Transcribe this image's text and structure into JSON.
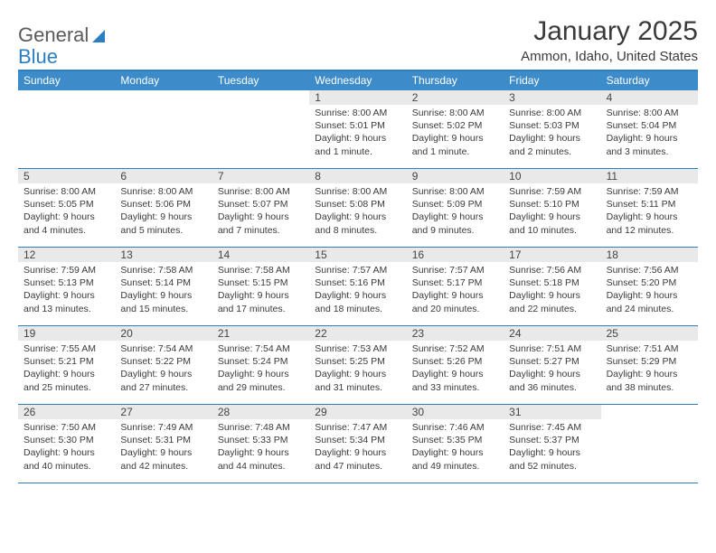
{
  "logo": {
    "text1": "General",
    "text2": "Blue"
  },
  "title": "January 2025",
  "location": "Ammon, Idaho, United States",
  "colors": {
    "accent": "#3d8bc9",
    "border": "#2d7dc3",
    "dayrow": "#e9e9e9",
    "text": "#3a3a3a",
    "bg": "#ffffff"
  },
  "daysOfWeek": [
    "Sunday",
    "Monday",
    "Tuesday",
    "Wednesday",
    "Thursday",
    "Friday",
    "Saturday"
  ],
  "weeks": [
    [
      null,
      null,
      null,
      {
        "n": "1",
        "sr": "8:00 AM",
        "ss": "5:01 PM",
        "dl": "9 hours and 1 minute."
      },
      {
        "n": "2",
        "sr": "8:00 AM",
        "ss": "5:02 PM",
        "dl": "9 hours and 1 minute."
      },
      {
        "n": "3",
        "sr": "8:00 AM",
        "ss": "5:03 PM",
        "dl": "9 hours and 2 minutes."
      },
      {
        "n": "4",
        "sr": "8:00 AM",
        "ss": "5:04 PM",
        "dl": "9 hours and 3 minutes."
      }
    ],
    [
      {
        "n": "5",
        "sr": "8:00 AM",
        "ss": "5:05 PM",
        "dl": "9 hours and 4 minutes."
      },
      {
        "n": "6",
        "sr": "8:00 AM",
        "ss": "5:06 PM",
        "dl": "9 hours and 5 minutes."
      },
      {
        "n": "7",
        "sr": "8:00 AM",
        "ss": "5:07 PM",
        "dl": "9 hours and 7 minutes."
      },
      {
        "n": "8",
        "sr": "8:00 AM",
        "ss": "5:08 PM",
        "dl": "9 hours and 8 minutes."
      },
      {
        "n": "9",
        "sr": "8:00 AM",
        "ss": "5:09 PM",
        "dl": "9 hours and 9 minutes."
      },
      {
        "n": "10",
        "sr": "7:59 AM",
        "ss": "5:10 PM",
        "dl": "9 hours and 10 minutes."
      },
      {
        "n": "11",
        "sr": "7:59 AM",
        "ss": "5:11 PM",
        "dl": "9 hours and 12 minutes."
      }
    ],
    [
      {
        "n": "12",
        "sr": "7:59 AM",
        "ss": "5:13 PM",
        "dl": "9 hours and 13 minutes."
      },
      {
        "n": "13",
        "sr": "7:58 AM",
        "ss": "5:14 PM",
        "dl": "9 hours and 15 minutes."
      },
      {
        "n": "14",
        "sr": "7:58 AM",
        "ss": "5:15 PM",
        "dl": "9 hours and 17 minutes."
      },
      {
        "n": "15",
        "sr": "7:57 AM",
        "ss": "5:16 PM",
        "dl": "9 hours and 18 minutes."
      },
      {
        "n": "16",
        "sr": "7:57 AM",
        "ss": "5:17 PM",
        "dl": "9 hours and 20 minutes."
      },
      {
        "n": "17",
        "sr": "7:56 AM",
        "ss": "5:18 PM",
        "dl": "9 hours and 22 minutes."
      },
      {
        "n": "18",
        "sr": "7:56 AM",
        "ss": "5:20 PM",
        "dl": "9 hours and 24 minutes."
      }
    ],
    [
      {
        "n": "19",
        "sr": "7:55 AM",
        "ss": "5:21 PM",
        "dl": "9 hours and 25 minutes."
      },
      {
        "n": "20",
        "sr": "7:54 AM",
        "ss": "5:22 PM",
        "dl": "9 hours and 27 minutes."
      },
      {
        "n": "21",
        "sr": "7:54 AM",
        "ss": "5:24 PM",
        "dl": "9 hours and 29 minutes."
      },
      {
        "n": "22",
        "sr": "7:53 AM",
        "ss": "5:25 PM",
        "dl": "9 hours and 31 minutes."
      },
      {
        "n": "23",
        "sr": "7:52 AM",
        "ss": "5:26 PM",
        "dl": "9 hours and 33 minutes."
      },
      {
        "n": "24",
        "sr": "7:51 AM",
        "ss": "5:27 PM",
        "dl": "9 hours and 36 minutes."
      },
      {
        "n": "25",
        "sr": "7:51 AM",
        "ss": "5:29 PM",
        "dl": "9 hours and 38 minutes."
      }
    ],
    [
      {
        "n": "26",
        "sr": "7:50 AM",
        "ss": "5:30 PM",
        "dl": "9 hours and 40 minutes."
      },
      {
        "n": "27",
        "sr": "7:49 AM",
        "ss": "5:31 PM",
        "dl": "9 hours and 42 minutes."
      },
      {
        "n": "28",
        "sr": "7:48 AM",
        "ss": "5:33 PM",
        "dl": "9 hours and 44 minutes."
      },
      {
        "n": "29",
        "sr": "7:47 AM",
        "ss": "5:34 PM",
        "dl": "9 hours and 47 minutes."
      },
      {
        "n": "30",
        "sr": "7:46 AM",
        "ss": "5:35 PM",
        "dl": "9 hours and 49 minutes."
      },
      {
        "n": "31",
        "sr": "7:45 AM",
        "ss": "5:37 PM",
        "dl": "9 hours and 52 minutes."
      },
      null
    ]
  ],
  "labels": {
    "sunrise": "Sunrise:",
    "sunset": "Sunset:",
    "daylight": "Daylight:"
  }
}
